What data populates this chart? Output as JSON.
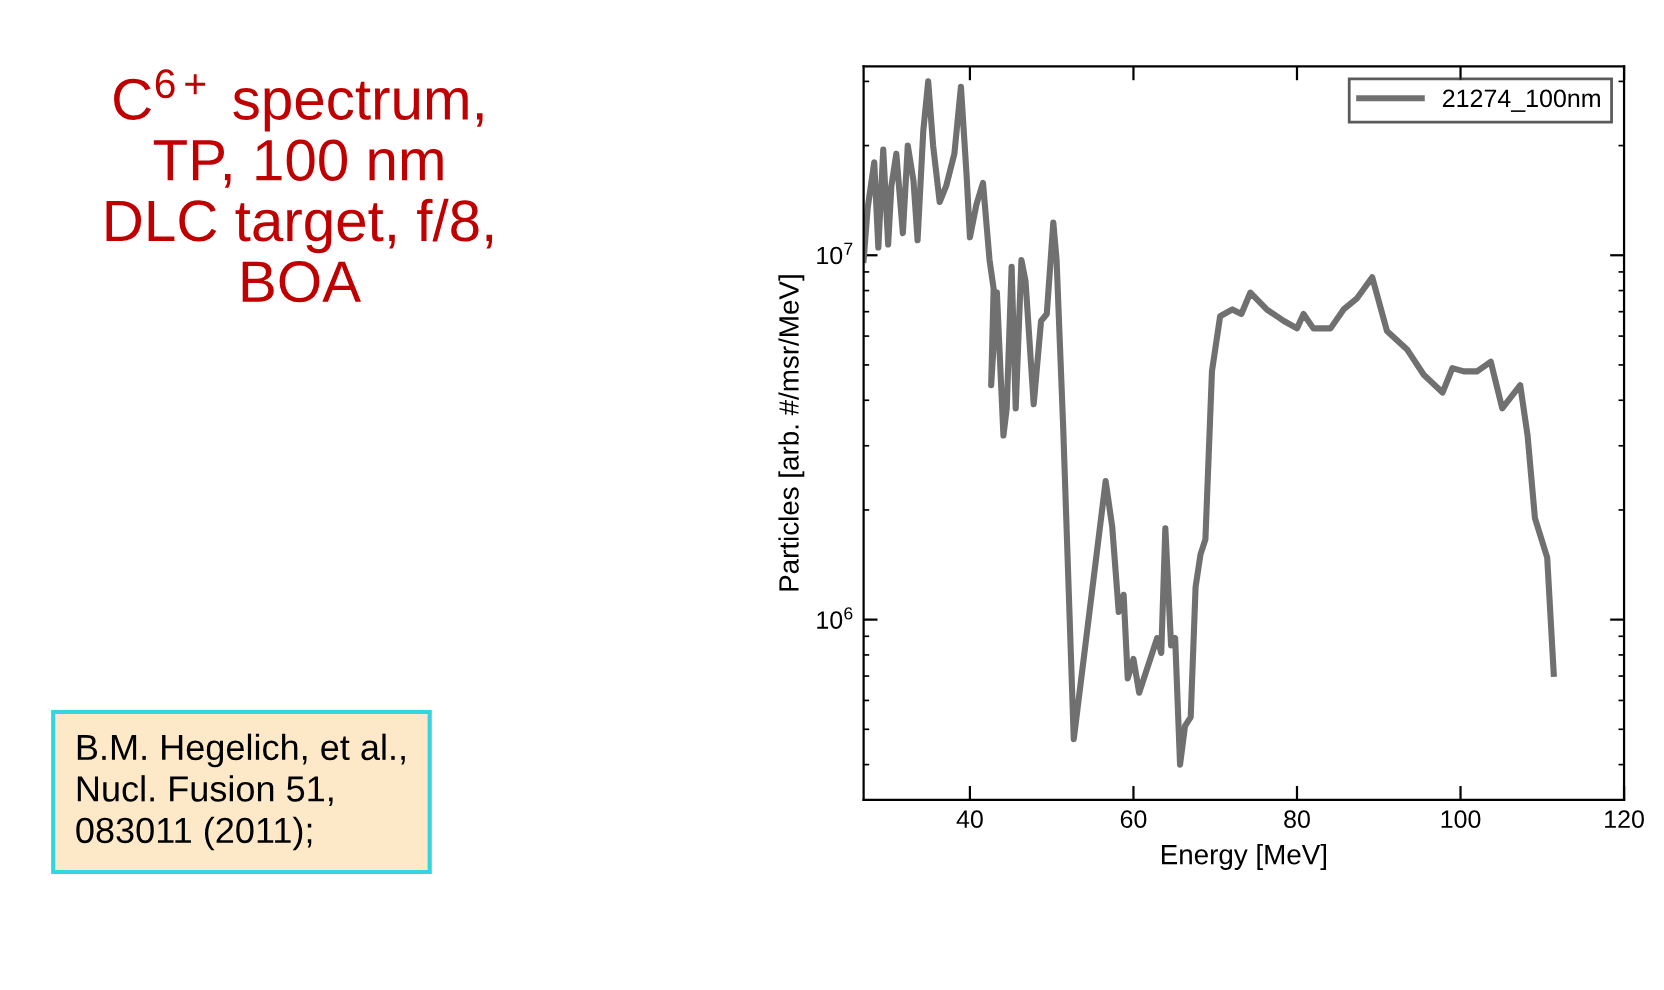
{
  "chart_data": {
    "type": "line",
    "title": "C$^{6+}$ spectrum,\nTP, 100 nm\nDLC target, f/8,\nBOA",
    "xlabel": "Energy [MeV]",
    "ylabel": "Particles [arb. #/msr/MeV]",
    "annotations": [
      "B.M. Hegelich, et al.,\nNucl. Fusion 51,\n083011 (2011);"
    ],
    "log": "y",
    "legend": "top right",
    "grid": false,
    "marker": "none",
    "line_style": "solid",
    "xlim": [
      27,
      120
    ],
    "xticks": [
      40,
      60,
      80,
      100,
      120
    ],
    "ylim": [
      320000,
      33000000
    ],
    "yticks": [
      {
        "value": 1000000,
        "label": "10$^{6}$"
      },
      {
        "value": 10000000,
        "label": "10$^{7}$"
      }
    ],
    "series": [
      {
        "name": "21274_100nm",
        "color": "#707070",
        "x": [
          27,
          27.5,
          28.3,
          28.8,
          29.4,
          30.0,
          30.4,
          31.0,
          31.8,
          32.4,
          33.1,
          33.6,
          34.3,
          34.9,
          35.5,
          36.3,
          37.1,
          38.1,
          38.9,
          39.6,
          40.0,
          40.8,
          41.6,
          42.4,
          42.9,
          42.6,
          43.3,
          44.1,
          44.5,
          45.1,
          45.6,
          46.3,
          46.8,
          47.8,
          48.7,
          49.4,
          50.2,
          50.6,
          51.4,
          52.7,
          56.6,
          57.4,
          58.2,
          58.8,
          59.3,
          60.0,
          60.7,
          62.9,
          63.4,
          63.9,
          64.6,
          65.1,
          65.7,
          66.3,
          67.0,
          67.6,
          68.2,
          68.8,
          69.6,
          70.6,
          72.1,
          73.2,
          74.3,
          76.3,
          78.4,
          80.0,
          80.8,
          82.0,
          84.1,
          85.7,
          87.3,
          89.2,
          91.0,
          93.5,
          95.5,
          97.8,
          99.0,
          100.4,
          102.0,
          103.7,
          105.1,
          107.3,
          108.2,
          109.1,
          110.6,
          111.4
        ],
        "values": [
          9700000,
          13500000,
          18000000,
          10500000,
          19500000,
          10700000,
          15500000,
          19000000,
          11500000,
          20000000,
          16000000,
          11000000,
          22000000,
          30000000,
          20000000,
          14000000,
          15500000,
          19000000,
          29000000,
          16500000,
          11200000,
          13800000,
          15800000,
          9700000,
          8100000,
          4400000,
          7900000,
          3200000,
          3800000,
          9300000,
          3800000,
          9700000,
          8500000,
          3900000,
          6600000,
          6900000,
          12300000,
          9700000,
          3400000,
          470000,
          2400000,
          1800000,
          1050000,
          1170000,
          690000,
          780000,
          630000,
          890000,
          810000,
          1780000,
          850000,
          890000,
          400000,
          510000,
          540000,
          1230000,
          1510000,
          1660000,
          4800000,
          6800000,
          7100000,
          6900000,
          7900000,
          7100000,
          6600000,
          6300000,
          6900000,
          6300000,
          6300000,
          7100000,
          7600000,
          8700000,
          6200000,
          5500000,
          4700000,
          4200000,
          4900000,
          4800000,
          4800000,
          5100000,
          3800000,
          4400000,
          3200000,
          1900000,
          1480000,
          710000
        ]
      }
    ]
  }
}
